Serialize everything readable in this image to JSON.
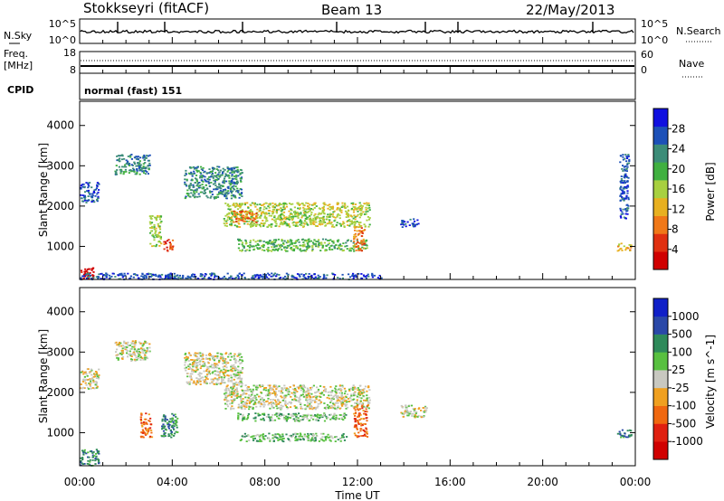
{
  "header": {
    "station": "Stokkseyri (fitACF)",
    "beam": "Beam 13",
    "date": "22/May/2013"
  },
  "noise_panel": {
    "left_label": "N.Sky",
    "left_ticks": [
      "10^5",
      "10^0"
    ],
    "right_ticks": [
      "10^5",
      "10^0"
    ],
    "right_label": "N.Search"
  },
  "freq_panel": {
    "left_label_1": "Freq.",
    "left_label_2": "[MHz]",
    "left_ticks": [
      "18",
      "8"
    ],
    "right_ticks": [
      "60",
      "0"
    ],
    "right_label": "Nave"
  },
  "cpid_panel": {
    "label": "CPID",
    "mode": "normal (fast) 151"
  },
  "time_axis": {
    "ticks": [
      "00:00",
      "04:00",
      "08:00",
      "12:00",
      "16:00",
      "20:00",
      "00:00"
    ],
    "label": "Time UT"
  },
  "chart_data": [
    {
      "type": "heatmap",
      "name": "power",
      "ylabel": "Slant Range [km]",
      "yticks": [
        "1000",
        "2000",
        "3000",
        "4000"
      ],
      "ylim": [
        180,
        4600
      ],
      "xlim_hours": [
        0,
        24
      ],
      "colorbar": {
        "label": "Power [dB]",
        "ticks": [
          "4",
          "8",
          "12",
          "16",
          "20",
          "24",
          "28"
        ],
        "colors": [
          "#1010e0",
          "#1c50b8",
          "#3c8c78",
          "#40b040",
          "#a8d040",
          "#e8b020",
          "#f07818",
          "#e03010",
          "#d00000"
        ]
      },
      "regions": [
        {
          "t0": 0.0,
          "t1": 0.6,
          "r0": 200,
          "r1": 500,
          "level": 8
        },
        {
          "t0": 0.0,
          "t1": 0.8,
          "r0": 2100,
          "r1": 2600,
          "level": 1
        },
        {
          "t0": 1.5,
          "t1": 3.0,
          "r0": 2800,
          "r1": 3300,
          "level": 2
        },
        {
          "t0": 3.0,
          "t1": 3.5,
          "r0": 1000,
          "r1": 1800,
          "level": 4
        },
        {
          "t0": 3.6,
          "t1": 4.0,
          "r0": 900,
          "r1": 1200,
          "level": 7
        },
        {
          "t0": 4.5,
          "t1": 7.0,
          "r0": 2200,
          "r1": 3000,
          "level": 2
        },
        {
          "t0": 6.2,
          "t1": 12.5,
          "r0": 1500,
          "r1": 2100,
          "level": 4
        },
        {
          "t0": 6.6,
          "t1": 7.6,
          "r0": 1600,
          "r1": 1900,
          "level": 6
        },
        {
          "t0": 6.8,
          "t1": 12.4,
          "r0": 900,
          "r1": 1200,
          "level": 3
        },
        {
          "t0": 11.8,
          "t1": 12.3,
          "r0": 900,
          "r1": 1500,
          "level": 6
        },
        {
          "t0": 13.8,
          "t1": 14.6,
          "r0": 1500,
          "r1": 1700,
          "level": 1
        },
        {
          "t0": 0.0,
          "t1": 13.0,
          "r0": 200,
          "r1": 350,
          "level": 1
        },
        {
          "t0": 23.2,
          "t1": 23.8,
          "r0": 900,
          "r1": 1100,
          "level": 5
        },
        {
          "t0": 23.3,
          "t1": 23.7,
          "r0": 1700,
          "r1": 3300,
          "level": 1
        }
      ]
    },
    {
      "type": "heatmap",
      "name": "velocity",
      "ylabel": "Slant Range [km]",
      "yticks": [
        "1000",
        "2000",
        "3000",
        "4000"
      ],
      "ylim": [
        180,
        4600
      ],
      "xlim_hours": [
        0,
        24
      ],
      "colorbar": {
        "label": "Velocity [m s^-1]",
        "ticks": [
          "1000",
          "500",
          "100",
          "25",
          "-25",
          "-100",
          "-500",
          "-1000"
        ],
        "colors": [
          "#1020c8",
          "#2a48a8",
          "#2e8a5a",
          "#58c040",
          "#c8c8c0",
          "#f0a020",
          "#f06810",
          "#e02010",
          "#d00000"
        ]
      },
      "regions": [
        {
          "t0": 0.0,
          "t1": 0.8,
          "r0": 200,
          "r1": 600,
          "level": 2
        },
        {
          "t0": 0.0,
          "t1": 0.8,
          "r0": 2100,
          "r1": 2600,
          "level": 4
        },
        {
          "t0": 1.5,
          "t1": 3.0,
          "r0": 2800,
          "r1": 3300,
          "level": 4
        },
        {
          "t0": 2.6,
          "t1": 3.1,
          "r0": 900,
          "r1": 1500,
          "level": 6
        },
        {
          "t0": 3.5,
          "t1": 4.2,
          "r0": 900,
          "r1": 1500,
          "level": 2
        },
        {
          "t0": 4.5,
          "t1": 7.0,
          "r0": 2200,
          "r1": 3000,
          "level": 4
        },
        {
          "t0": 6.2,
          "t1": 12.5,
          "r0": 1600,
          "r1": 2200,
          "level": 4
        },
        {
          "t0": 6.8,
          "t1": 11.5,
          "r0": 1300,
          "r1": 1500,
          "level": 3
        },
        {
          "t0": 6.8,
          "t1": 11.5,
          "r0": 800,
          "r1": 1000,
          "level": 3
        },
        {
          "t0": 11.8,
          "t1": 12.4,
          "r0": 900,
          "r1": 1700,
          "level": 6
        },
        {
          "t0": 13.8,
          "t1": 15.0,
          "r0": 1400,
          "r1": 1700,
          "level": 4
        },
        {
          "t0": 23.2,
          "t1": 23.8,
          "r0": 900,
          "r1": 1100,
          "level": 2
        }
      ]
    }
  ]
}
